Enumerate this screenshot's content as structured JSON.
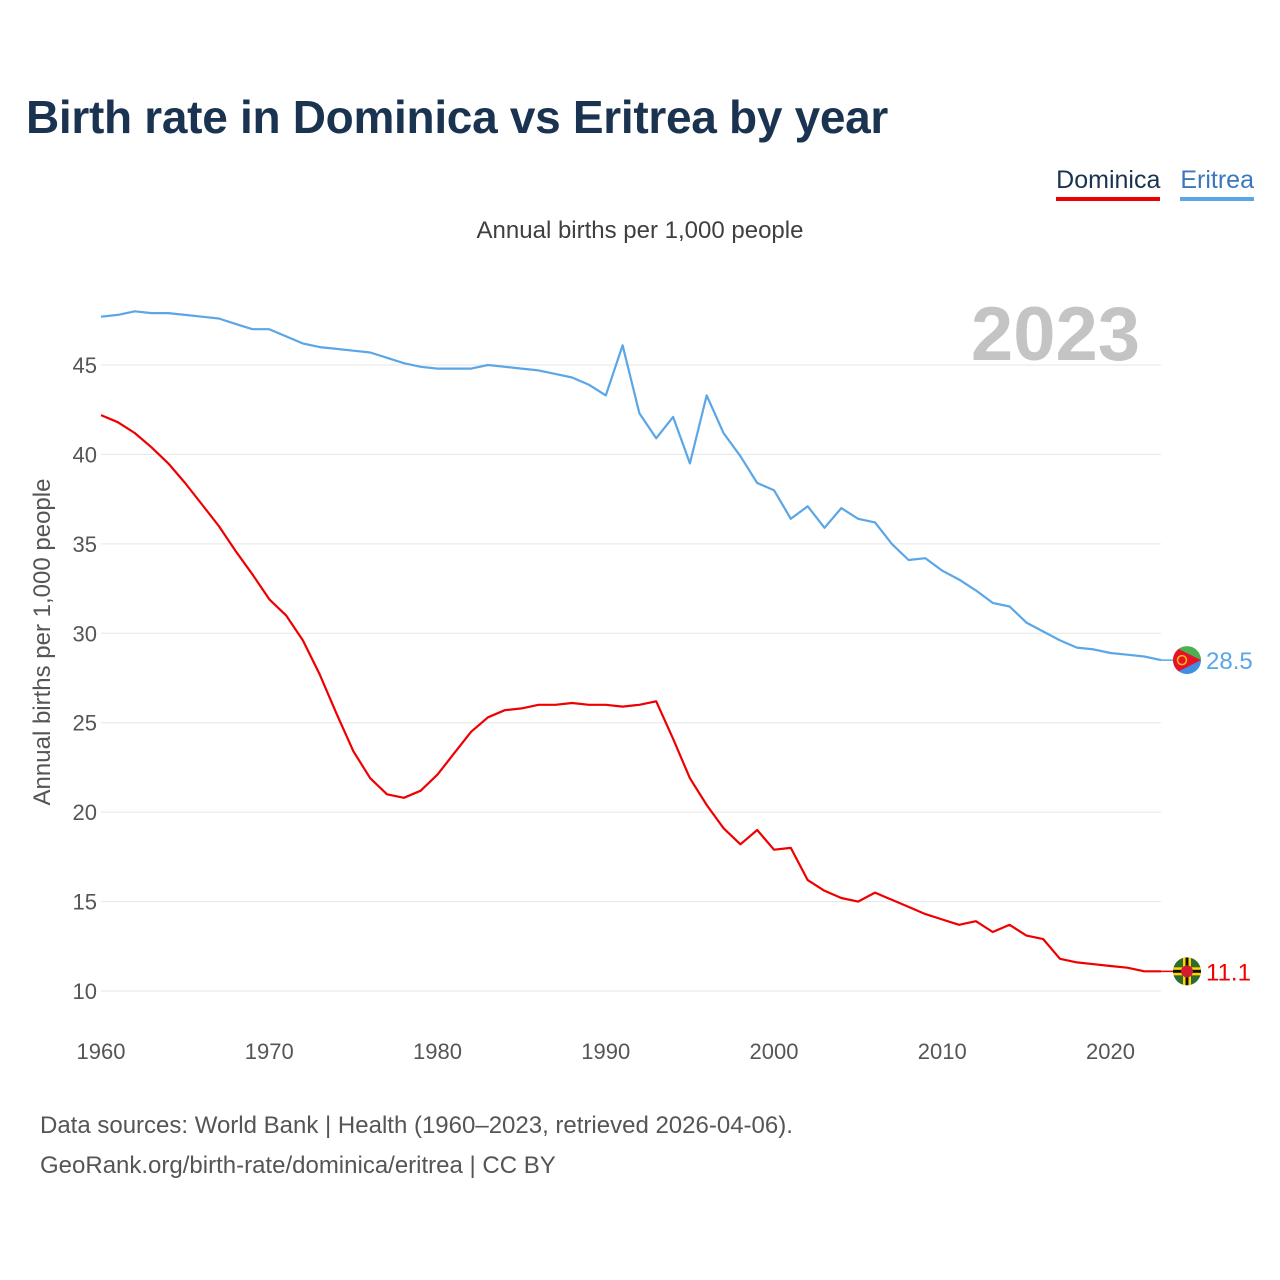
{
  "chart_data": {
    "type": "line",
    "title": "Birth rate in Dominica vs Eritrea by year",
    "subtitle": "Annual births per 1,000 people",
    "ylabel": "Annual births per 1,000 people",
    "xlabel": "",
    "year_label": "2023",
    "xlim": [
      1960,
      2023
    ],
    "ylim": [
      8,
      48.5
    ],
    "y_ticks": [
      10,
      15,
      20,
      25,
      30,
      35,
      40,
      45
    ],
    "x_ticks": [
      1960,
      1970,
      1980,
      1990,
      2000,
      2010,
      2020
    ],
    "grid": true,
    "legend_position": "top-right",
    "x": [
      1960,
      1961,
      1962,
      1963,
      1964,
      1965,
      1966,
      1967,
      1968,
      1969,
      1970,
      1971,
      1972,
      1973,
      1974,
      1975,
      1976,
      1977,
      1978,
      1979,
      1980,
      1981,
      1982,
      1983,
      1984,
      1985,
      1986,
      1987,
      1988,
      1989,
      1990,
      1991,
      1992,
      1993,
      1994,
      1995,
      1996,
      1997,
      1998,
      1999,
      2000,
      2001,
      2002,
      2003,
      2004,
      2005,
      2006,
      2007,
      2008,
      2009,
      2010,
      2011,
      2012,
      2013,
      2014,
      2015,
      2016,
      2017,
      2018,
      2019,
      2020,
      2021,
      2022,
      2023
    ],
    "series": [
      {
        "name": "Dominica",
        "color": "#ef0000",
        "end_label": "11.1",
        "values": [
          42.2,
          41.8,
          41.2,
          40.4,
          39.5,
          38.4,
          37.2,
          36.0,
          34.6,
          33.3,
          31.9,
          31.0,
          29.6,
          27.7,
          25.5,
          23.4,
          21.9,
          21.0,
          20.8,
          21.2,
          22.1,
          23.3,
          24.5,
          25.3,
          25.7,
          25.8,
          26.0,
          26.0,
          26.1,
          26.0,
          26.0,
          25.9,
          26.0,
          26.2,
          24.1,
          21.9,
          20.4,
          19.1,
          18.2,
          19.0,
          17.9,
          18.0,
          16.2,
          15.6,
          15.2,
          15.0,
          15.5,
          15.1,
          14.7,
          14.3,
          14.0,
          13.7,
          13.9,
          13.3,
          13.7,
          13.1,
          12.9,
          11.8,
          11.6,
          11.5,
          11.4,
          11.3,
          11.1,
          11.1
        ]
      },
      {
        "name": "Eritrea",
        "color": "#5aa6e6",
        "end_label": "28.5",
        "values": [
          47.7,
          47.8,
          48.0,
          47.9,
          47.9,
          47.8,
          47.7,
          47.6,
          47.3,
          47.0,
          47.0,
          46.6,
          46.2,
          46.0,
          45.9,
          45.8,
          45.7,
          45.4,
          45.1,
          44.9,
          44.8,
          44.8,
          44.8,
          45.0,
          44.9,
          44.8,
          44.7,
          44.5,
          44.3,
          43.9,
          43.3,
          46.1,
          42.3,
          40.9,
          42.1,
          39.5,
          43.3,
          41.2,
          39.9,
          38.4,
          38.0,
          36.4,
          37.1,
          35.9,
          37.0,
          36.4,
          36.2,
          35.0,
          34.1,
          34.2,
          33.5,
          33.0,
          32.4,
          31.7,
          31.5,
          30.6,
          30.1,
          29.6,
          29.2,
          29.1,
          28.9,
          28.8,
          28.7,
          28.5
        ]
      }
    ]
  },
  "legend": {
    "dominica": "Dominica",
    "eritrea": "Eritrea"
  },
  "source": {
    "line1": "Data sources: World Bank | Health (1960–2023, retrieved 2026-04-06).",
    "line2": "GeoRank.org/birth-rate/dominica/eritrea | CC BY"
  },
  "flags": {
    "dominica": "dominica-flag-icon",
    "eritrea": "eritrea-flag-icon"
  }
}
